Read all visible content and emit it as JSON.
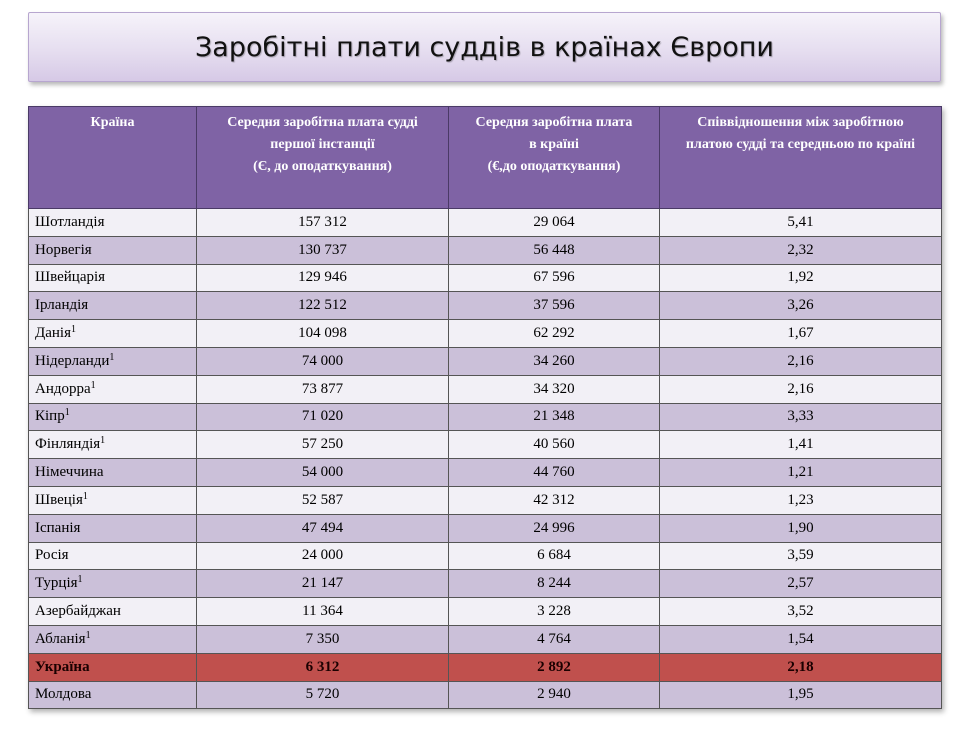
{
  "title": "Заробітні плати суддів в країнах Європи",
  "table": {
    "headers": [
      {
        "lines": [
          "Країна"
        ]
      },
      {
        "lines": [
          "Середня заробітна плата судді",
          "першої інстанції",
          "(Є, до оподаткування)"
        ]
      },
      {
        "lines": [
          "Середня заробітна плата",
          "в країні",
          "(€,до оподаткування)"
        ]
      },
      {
        "lines": [
          "Співвідношення між заробітною",
          "платою судді та середньою по країні"
        ]
      }
    ],
    "rows": [
      {
        "country": "Шотландія",
        "note": "",
        "judge_salary": "157 312",
        "avg_salary": "29 064",
        "ratio": "5,41"
      },
      {
        "country": "Норвегія",
        "note": "",
        "judge_salary": "130 737",
        "avg_salary": "56 448",
        "ratio": "2,32"
      },
      {
        "country": "Швейцарія",
        "note": "",
        "judge_salary": "129 946",
        "avg_salary": "67 596",
        "ratio": "1,92"
      },
      {
        "country": "Ірландія",
        "note": "",
        "judge_salary": "122 512",
        "avg_salary": "37 596",
        "ratio": "3,26"
      },
      {
        "country": "Данія",
        "note": "1",
        "judge_salary": "104 098",
        "avg_salary": "62 292",
        "ratio": "1,67"
      },
      {
        "country": "Нідерланди",
        "note": "1",
        "judge_salary": "74 000",
        "avg_salary": "34 260",
        "ratio": "2,16"
      },
      {
        "country": "Андорра",
        "note": "1",
        "judge_salary": "73 877",
        "avg_salary": "34 320",
        "ratio": "2,16"
      },
      {
        "country": "Кіпр",
        "note": "1",
        "judge_salary": "71 020",
        "avg_salary": "21 348",
        "ratio": "3,33"
      },
      {
        "country": "Фінляндія",
        "note": "1",
        "judge_salary": "57 250",
        "avg_salary": "40 560",
        "ratio": "1,41"
      },
      {
        "country": "Німеччина",
        "note": "",
        "judge_salary": "54 000",
        "avg_salary": "44 760",
        "ratio": "1,21"
      },
      {
        "country": "Швеція",
        "note": "1",
        "judge_salary": "52 587",
        "avg_salary": "42 312",
        "ratio": "1,23"
      },
      {
        "country": "Іспанія",
        "note": "",
        "judge_salary": "47 494",
        "avg_salary": "24 996",
        "ratio": "1,90"
      },
      {
        "country": "Росія",
        "note": "",
        "judge_salary": "24 000",
        "avg_salary": "6 684",
        "ratio": "3,59"
      },
      {
        "country": "Турція",
        "note": "1",
        "judge_salary": "21 147",
        "avg_salary": "8 244",
        "ratio": "2,57"
      },
      {
        "country": "Азербайджан",
        "note": "",
        "judge_salary": "11 364",
        "avg_salary": "3 228",
        "ratio": "3,52"
      },
      {
        "country": "Абланія",
        "note": "1",
        "judge_salary": "7 350",
        "avg_salary": "4 764",
        "ratio": "1,54"
      },
      {
        "country": "Україна",
        "note": "",
        "judge_salary": "6 312",
        "avg_salary": "2 892",
        "ratio": "2,18",
        "highlight": true
      },
      {
        "country": "Молдова",
        "note": "",
        "judge_salary": "5 720",
        "avg_salary": "2 940",
        "ratio": "1,95"
      }
    ]
  },
  "colors": {
    "header_bg": "#7f63a5",
    "row_light": "#f2f0f6",
    "row_dark": "#cbc0d9",
    "highlight_row": "#c0504d"
  }
}
